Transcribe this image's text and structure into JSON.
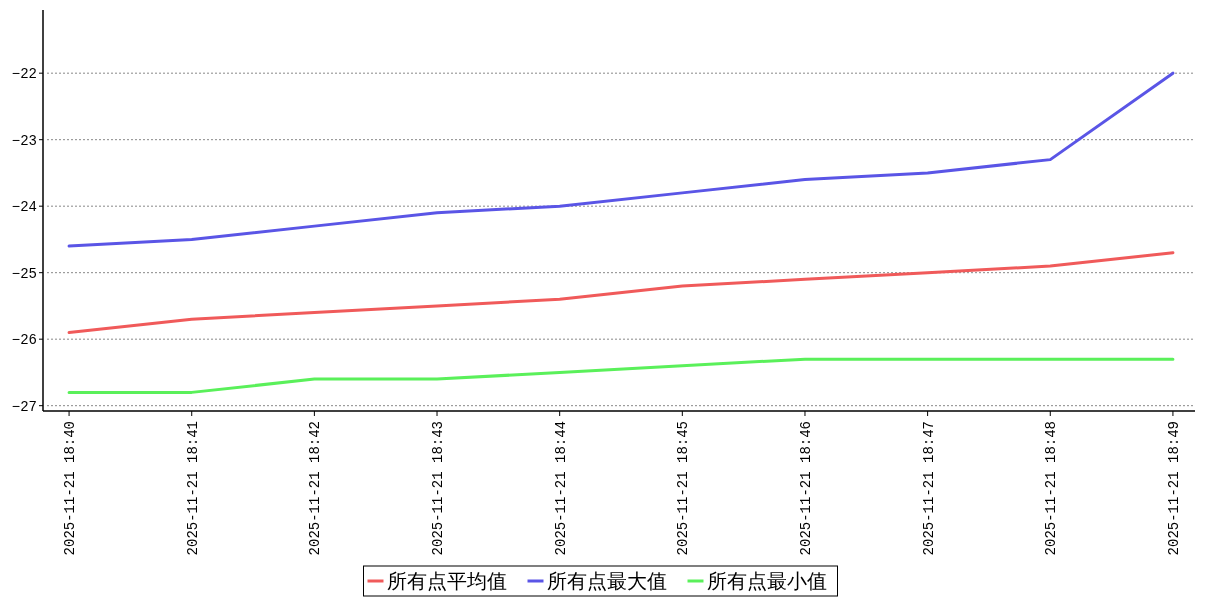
{
  "chart_data": {
    "type": "line",
    "categories": [
      "2025-11-21 18:40",
      "2025-11-21 18:41",
      "2025-11-21 18:42",
      "2025-11-21 18:43",
      "2025-11-21 18:44",
      "2025-11-21 18:45",
      "2025-11-21 18:46",
      "2025-11-21 18:47",
      "2025-11-21 18:48",
      "2025-11-21 18:49"
    ],
    "series": [
      {
        "name": "所有点平均值",
        "color": "#f05a5a",
        "values": [
          -25.9,
          -25.7,
          -25.6,
          -25.5,
          -25.4,
          -25.2,
          -25.1,
          -25.0,
          -24.9,
          -24.7
        ]
      },
      {
        "name": "所有点最大值",
        "color": "#5a55e6",
        "values": [
          -24.6,
          -24.5,
          -24.3,
          -24.1,
          -24.0,
          -23.8,
          -23.6,
          -23.5,
          -23.3,
          -22.0
        ]
      },
      {
        "name": "所有点最小值",
        "color": "#5af05a",
        "values": [
          -26.8,
          -26.8,
          -26.6,
          -26.6,
          -26.5,
          -26.4,
          -26.3,
          -26.3,
          -26.3,
          -26.3
        ]
      }
    ],
    "ylim": [
      -27.08,
      -21.05
    ],
    "yticks": [
      {
        "value": -27,
        "label": "−27"
      },
      {
        "value": -26,
        "label": "−26"
      },
      {
        "value": -25,
        "label": "−25"
      },
      {
        "value": -24,
        "label": "−24"
      },
      {
        "value": -23,
        "label": "−23"
      },
      {
        "value": -22,
        "label": "−22"
      }
    ],
    "grid": "y",
    "legend": "bottom",
    "marker": "none",
    "line_style": "solid"
  }
}
